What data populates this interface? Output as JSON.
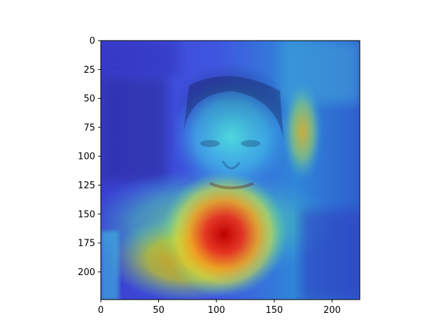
{
  "chart_data": {
    "type": "heatmap",
    "description_visible": "",
    "x_ticks": [
      0,
      50,
      100,
      150,
      200
    ],
    "y_ticks": [
      0,
      25,
      50,
      75,
      100,
      125,
      150,
      175,
      200
    ],
    "xlim": [
      0,
      224
    ],
    "ylim": [
      224,
      0
    ],
    "colormap": "jet",
    "grid": false
  }
}
